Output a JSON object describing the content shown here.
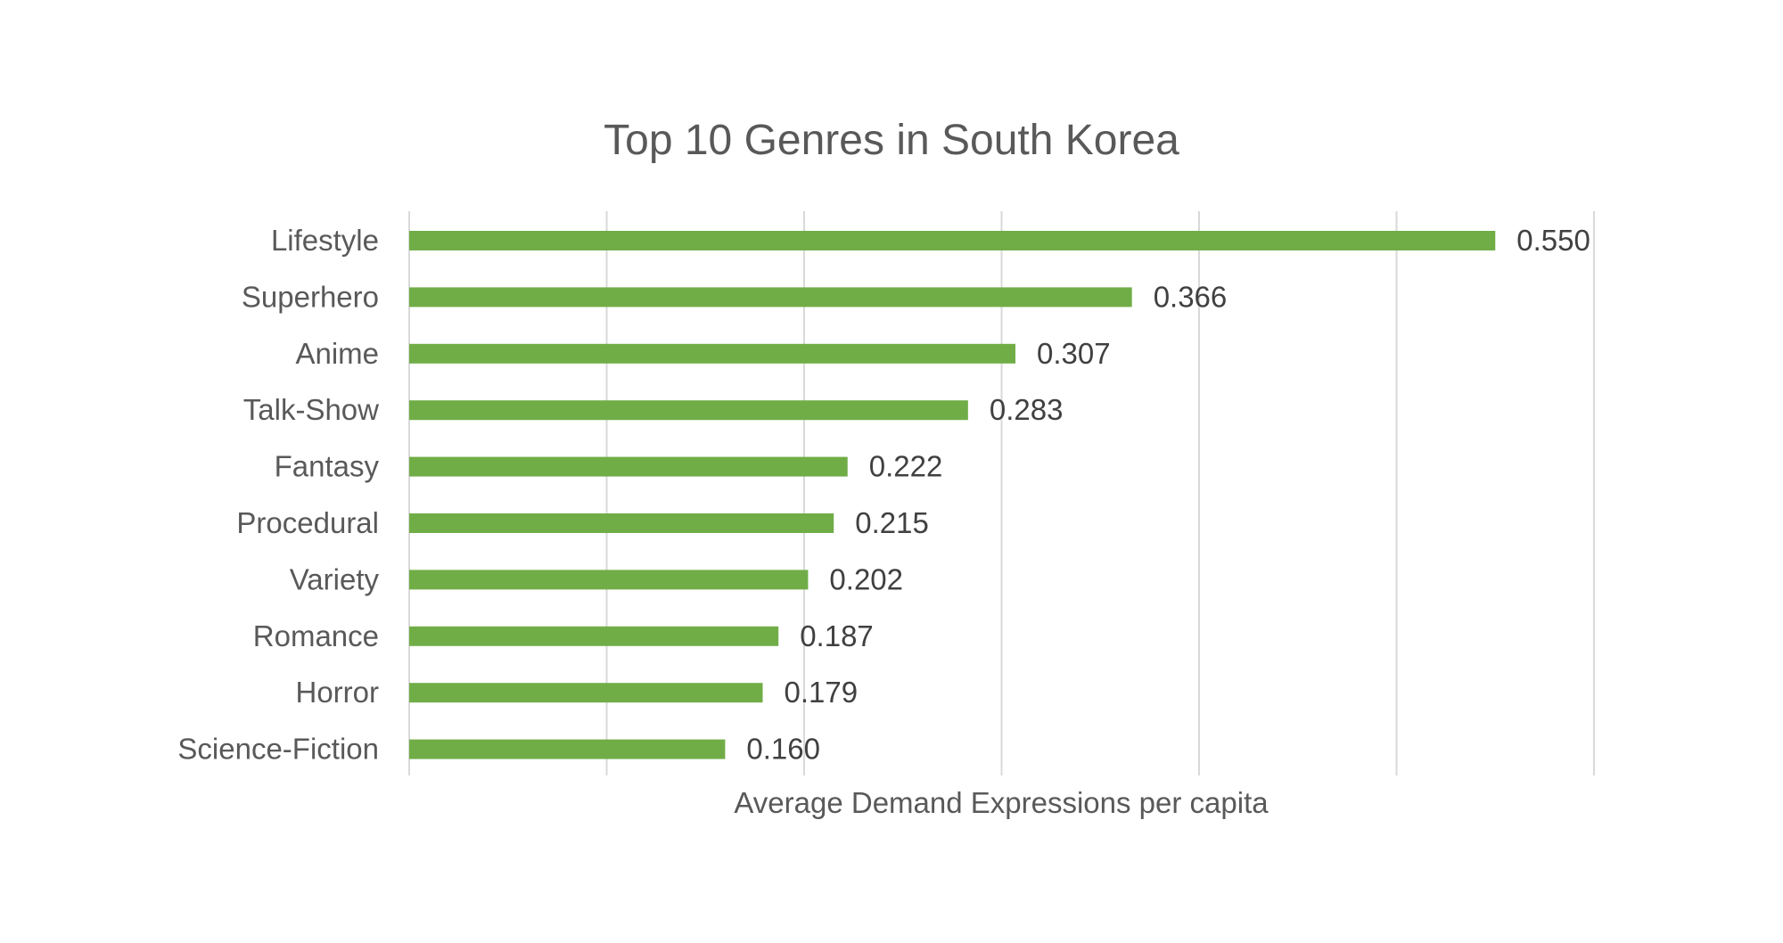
{
  "chart_data": {
    "type": "bar",
    "orientation": "horizontal",
    "title": "Top 10 Genres in South Korea",
    "xlabel": "Average Demand Expressions per capita",
    "ylabel": "",
    "xlim": [
      0,
      0.6
    ],
    "grid_step": 0.1,
    "grid": true,
    "legend": "none",
    "bar_color": "#70AD47",
    "categories": [
      "Lifestyle",
      "Superhero",
      "Anime",
      "Talk-Show",
      "Fantasy",
      "Procedural",
      "Variety",
      "Romance",
      "Horror",
      "Science-Fiction"
    ],
    "values": [
      0.55,
      0.366,
      0.307,
      0.283,
      0.222,
      0.215,
      0.202,
      0.187,
      0.179,
      0.16
    ],
    "value_labels": [
      "0.550",
      "0.366",
      "0.307",
      "0.283",
      "0.222",
      "0.215",
      "0.202",
      "0.187",
      "0.179",
      "0.160"
    ]
  }
}
